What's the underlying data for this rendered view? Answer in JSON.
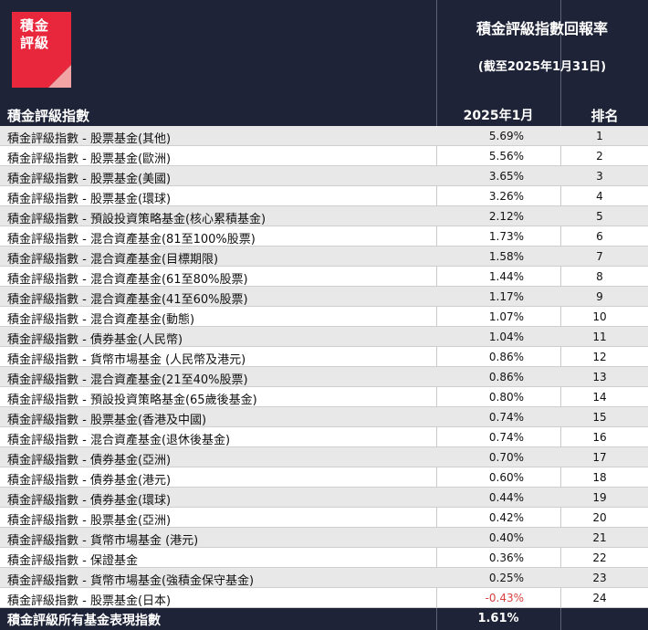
{
  "logo": {
    "text": "積金評級"
  },
  "header": {
    "title": "積金評級指數回報率",
    "subtitle": "(截至2025年1月31日)",
    "col_index": "積金評級指數",
    "col_return": "2025年1月",
    "col_rank": "排名"
  },
  "colors": {
    "header_bg": "#1e2337",
    "logo_red": "#e8273c",
    "logo_pink": "#f2a3a3",
    "negative": "#d94040"
  },
  "rows": [
    {
      "name": "積金評級指數 - 股票基金(其他)",
      "ret": "5.69%",
      "rank": "1"
    },
    {
      "name": "積金評級指數 - 股票基金(歐洲)",
      "ret": "5.56%",
      "rank": "2"
    },
    {
      "name": "積金評級指數 - 股票基金(美國)",
      "ret": "3.65%",
      "rank": "3"
    },
    {
      "name": "積金評級指數 - 股票基金(環球)",
      "ret": "3.26%",
      "rank": "4"
    },
    {
      "name": "積金評級指數 - 預設投資策略基金(核心累積基金)",
      "ret": "2.12%",
      "rank": "5"
    },
    {
      "name": "積金評級指數 - 混合資產基金(81至100%股票)",
      "ret": "1.73%",
      "rank": "6"
    },
    {
      "name": "積金評級指數 - 混合資產基金(目標期限)",
      "ret": "1.58%",
      "rank": "7"
    },
    {
      "name": "積金評級指數 - 混合資產基金(61至80%股票)",
      "ret": "1.44%",
      "rank": "8"
    },
    {
      "name": "積金評級指數 - 混合資產基金(41至60%股票)",
      "ret": "1.17%",
      "rank": "9"
    },
    {
      "name": "積金評級指數 - 混合資產基金(動態)",
      "ret": "1.07%",
      "rank": "10"
    },
    {
      "name": "積金評級指數 - 債券基金(人民幣)",
      "ret": "1.04%",
      "rank": "11"
    },
    {
      "name": "積金評級指數 - 貨幣市場基金 (人民幣及港元)",
      "ret": "0.86%",
      "rank": "12"
    },
    {
      "name": "積金評級指數 - 混合資產基金(21至40%股票)",
      "ret": "0.86%",
      "rank": "13"
    },
    {
      "name": "積金評級指數 - 預設投資策略基金(65歲後基金)",
      "ret": "0.80%",
      "rank": "14"
    },
    {
      "name": "積金評級指數 - 股票基金(香港及中國)",
      "ret": "0.74%",
      "rank": "15"
    },
    {
      "name": "積金評級指數 - 混合資產基金(退休後基金)",
      "ret": "0.74%",
      "rank": "16"
    },
    {
      "name": "積金評級指數 - 債券基金(亞洲)",
      "ret": "0.70%",
      "rank": "17"
    },
    {
      "name": "積金評級指數 - 債券基金(港元)",
      "ret": "0.60%",
      "rank": "18"
    },
    {
      "name": "積金評級指數 - 債券基金(環球)",
      "ret": "0.44%",
      "rank": "19"
    },
    {
      "name": "積金評級指數 - 股票基金(亞洲)",
      "ret": "0.42%",
      "rank": "20"
    },
    {
      "name": "積金評級指數 - 貨幣市場基金 (港元)",
      "ret": "0.40%",
      "rank": "21"
    },
    {
      "name": "積金評級指數 - 保證基金",
      "ret": "0.36%",
      "rank": "22"
    },
    {
      "name": "積金評級指數 - 貨幣市場基金(強積金保守基金)",
      "ret": "0.25%",
      "rank": "23"
    },
    {
      "name": "積金評級指數 - 股票基金(日本)",
      "ret": "-0.43%",
      "rank": "24",
      "negative": true
    }
  ],
  "footer": {
    "name": "積金評級所有基金表現指數",
    "ret": "1.61%"
  }
}
